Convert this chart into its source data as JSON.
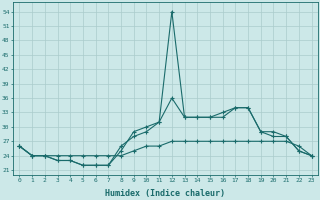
{
  "xlabel": "Humidex (Indice chaleur)",
  "bg_color": "#cce8e8",
  "grid_color": "#aacccc",
  "line_color": "#1a6b6b",
  "x": [
    0,
    1,
    2,
    3,
    4,
    5,
    6,
    7,
    8,
    9,
    10,
    11,
    12,
    13,
    14,
    15,
    16,
    17,
    18,
    19,
    20,
    21,
    22,
    23
  ],
  "line1": [
    26,
    24,
    24,
    23,
    23,
    22,
    22,
    22,
    25,
    29,
    30,
    31,
    54,
    32,
    32,
    32,
    32,
    34,
    34,
    29,
    29,
    28,
    25,
    24
  ],
  "line2": [
    26,
    24,
    24,
    23,
    23,
    22,
    22,
    22,
    26,
    28,
    29,
    31,
    36,
    32,
    32,
    32,
    33,
    34,
    34,
    29,
    28,
    28,
    25,
    24
  ],
  "line3": [
    26,
    24,
    24,
    24,
    24,
    24,
    24,
    24,
    24,
    25,
    26,
    26,
    27,
    27,
    27,
    27,
    27,
    27,
    27,
    27,
    27,
    27,
    26,
    24
  ],
  "ylim": [
    20,
    56
  ],
  "yticks": [
    21,
    24,
    27,
    30,
    33,
    36,
    39,
    42,
    45,
    48,
    51,
    54
  ],
  "xlim": [
    -0.5,
    23.5
  ],
  "figsize": [
    3.2,
    2.0
  ],
  "dpi": 100
}
